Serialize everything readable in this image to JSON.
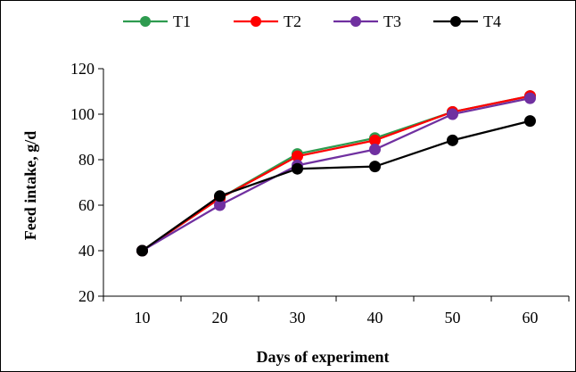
{
  "chart_data": {
    "type": "line",
    "title": "",
    "xlabel": "Days of experiment",
    "ylabel": "Feed intake, g/d",
    "x": [
      10,
      20,
      30,
      40,
      50,
      60
    ],
    "ylim": [
      20,
      120
    ],
    "yticks": [
      20,
      40,
      60,
      80,
      100,
      120
    ],
    "grid": false,
    "legend_position": "top",
    "series": [
      {
        "name": "T1",
        "color": "#2e9b4f",
        "values": [
          40,
          63,
          82.5,
          89.5,
          101,
          108
        ]
      },
      {
        "name": "T2",
        "color": "#ff0000",
        "values": [
          40,
          63,
          81.5,
          88.5,
          101,
          108
        ]
      },
      {
        "name": "T3",
        "color": "#7030a0",
        "values": [
          40,
          60,
          77.5,
          84.5,
          100,
          107
        ]
      },
      {
        "name": "T4",
        "color": "#000000",
        "values": [
          40,
          64,
          76,
          77,
          88.5,
          97
        ]
      }
    ]
  }
}
